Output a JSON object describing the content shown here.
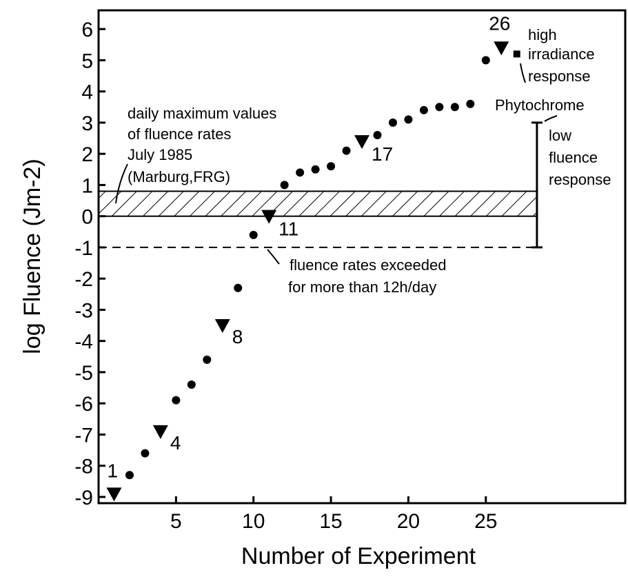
{
  "chart_data": {
    "type": "scatter",
    "x_label": "Number of Experiment",
    "y_label": "log Fluence  (Jm-2)",
    "xlim": [
      0,
      34
    ],
    "ylim": [
      -9.2,
      6.6
    ],
    "xticks": [
      5,
      10,
      15,
      20,
      25
    ],
    "yticks": [
      -9,
      -8,
      -7,
      -6,
      -5,
      -4,
      -3,
      -2,
      -1,
      0,
      1,
      2,
      3,
      4,
      5,
      6
    ],
    "series": [
      {
        "marker": "circle",
        "color": "#000000",
        "x": [
          2,
          3,
          5,
          6,
          7,
          9,
          10,
          12,
          13,
          14,
          15,
          16,
          18,
          19,
          20,
          21,
          22,
          23,
          24,
          25
        ],
        "values": [
          -8.3,
          -7.6,
          -5.9,
          -5.4,
          -4.6,
          -2.3,
          -0.6,
          1.0,
          1.4,
          1.5,
          1.6,
          2.1,
          2.6,
          3.0,
          3.1,
          3.4,
          3.5,
          3.5,
          3.6,
          5.0
        ]
      },
      {
        "marker": "triangle",
        "color": "#000000",
        "x": [
          1,
          4,
          8,
          11,
          17,
          26
        ],
        "values": [
          -8.9,
          -6.9,
          -3.5,
          0,
          2.4,
          5.4
        ],
        "point_labels": [
          "1",
          "4",
          "8",
          "11",
          "17",
          "26"
        ]
      },
      {
        "marker": "square",
        "color": "#000000",
        "x": [
          27
        ],
        "values": [
          5.2
        ]
      }
    ],
    "band": {
      "x": [
        0,
        28.3
      ],
      "y": [
        0,
        0.8
      ]
    },
    "dashed_line": {
      "x": [
        0,
        28.3
      ],
      "y": -1
    },
    "range_bar": {
      "x": 28.3,
      "y": [
        -1,
        3
      ]
    },
    "annotations": {
      "daily_max": [
        "daily maximum values",
        "of fluence rates",
        "July 1985",
        "(Marburg,FRG)"
      ],
      "exceeded": [
        "fluence rates exceeded",
        "for more than 12h/day"
      ],
      "high_irradiance": [
        "high",
        "irradiance",
        "response"
      ],
      "phytochrome": "Phytochrome",
      "low_fluence": [
        "low",
        "fluence",
        "response"
      ]
    }
  }
}
